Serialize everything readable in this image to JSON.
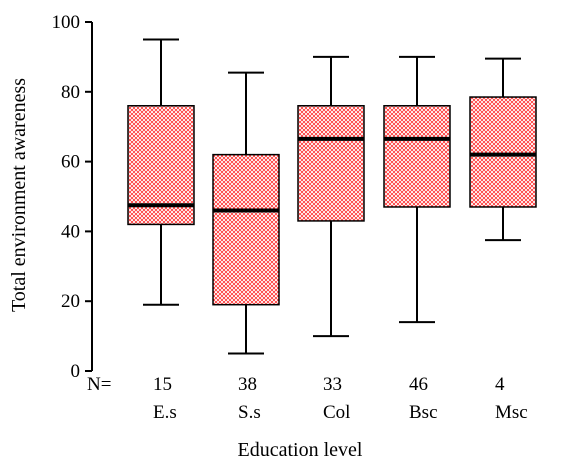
{
  "chart_data": {
    "type": "boxplot",
    "title": "",
    "xlabel": "Education level",
    "ylabel": "Total environment awareness",
    "ylim": [
      0,
      100
    ],
    "yticks": [
      0,
      20,
      40,
      60,
      80,
      100
    ],
    "n_label": "N=",
    "grid": false,
    "legend": "none",
    "box_fill_color": "#ff2a2a",
    "box_pattern_color": "#ffffff",
    "categories": [
      "E.s",
      "S.s",
      "Col",
      "Bsc",
      "Msc"
    ],
    "n": [
      "15",
      "38",
      "33",
      "46",
      "4"
    ],
    "boxes": [
      {
        "category": "E.s",
        "whisker_low": 19,
        "q1": 42,
        "median": 47.5,
        "q3": 76,
        "whisker_high": 95
      },
      {
        "category": "S.s",
        "whisker_low": 5,
        "q1": 19,
        "median": 46,
        "q3": 62,
        "whisker_high": 85.5
      },
      {
        "category": "Col",
        "whisker_low": 10,
        "q1": 43,
        "median": 66.5,
        "q3": 76,
        "whisker_high": 90
      },
      {
        "category": "Bsc",
        "whisker_low": 14,
        "q1": 47,
        "median": 66.5,
        "q3": 76,
        "whisker_high": 90
      },
      {
        "category": "Msc",
        "whisker_low": 37.5,
        "q1": 47,
        "median": 62,
        "q3": 78.5,
        "whisker_high": 89.5
      }
    ]
  }
}
